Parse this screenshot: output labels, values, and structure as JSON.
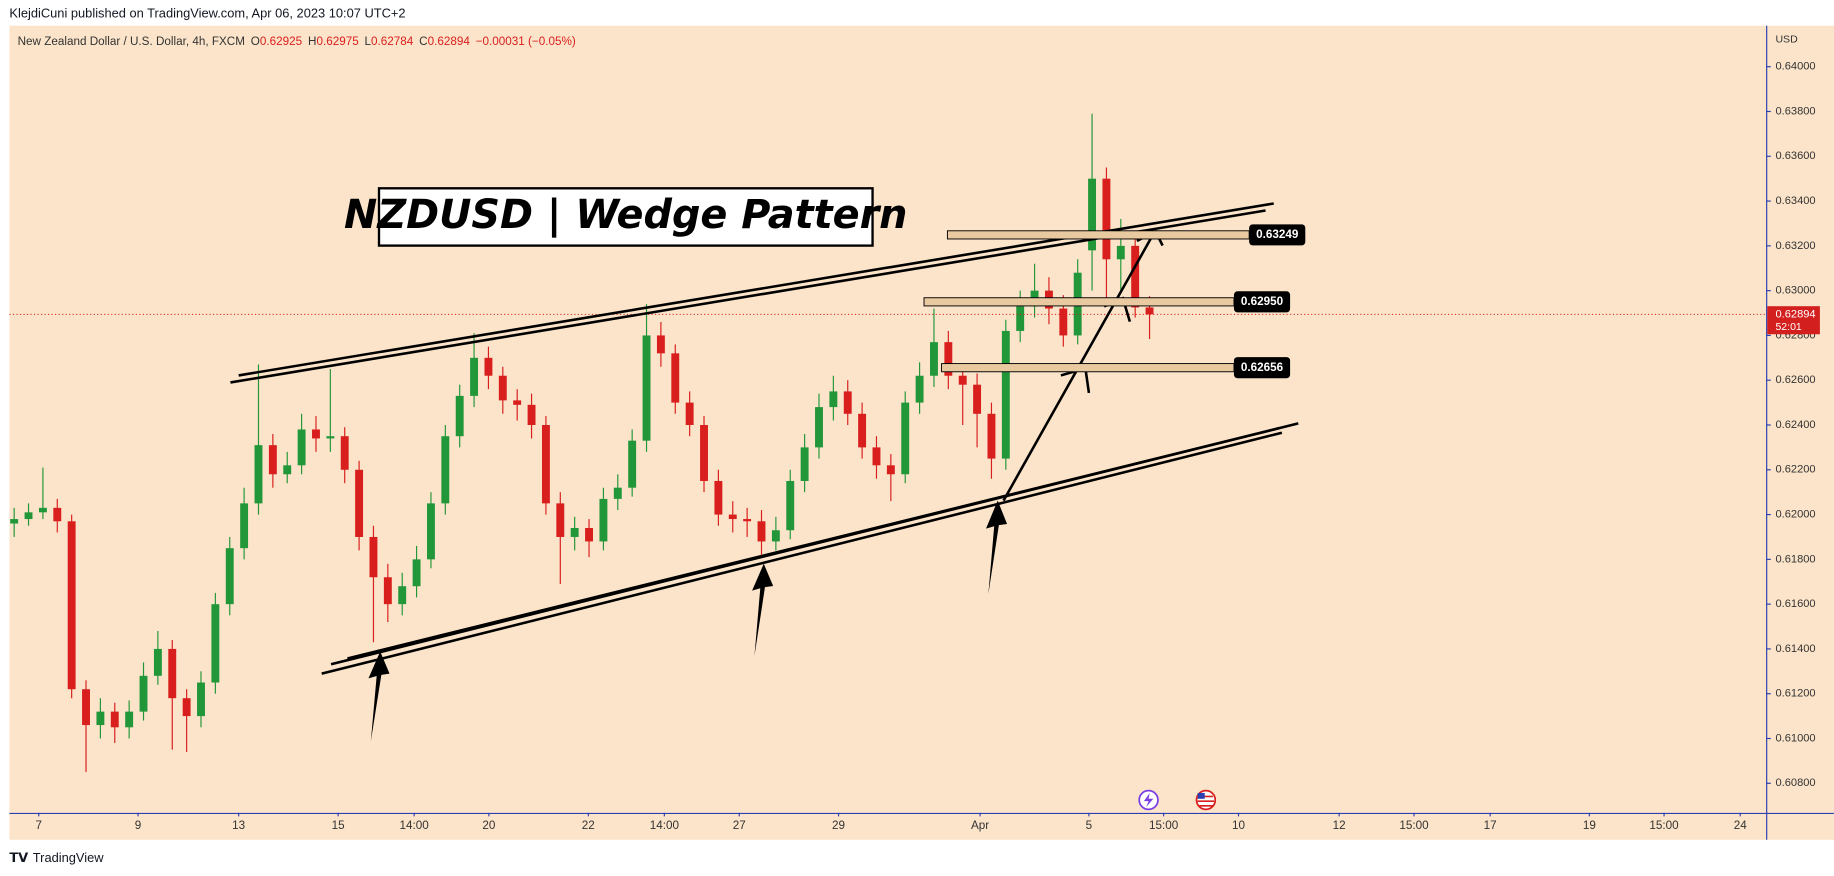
{
  "header": "KlejdiCuni published on TradingView.com, Apr 06, 2023 10:07 UTC+2",
  "footer": "TradingView",
  "chart_data": {
    "type": "candlestick",
    "title": "NZDUSD | Wedge Pattern",
    "symbol": "New Zealand Dollar / U.S. Dollar, 4h, FXCM",
    "ohlc_labels": [
      "O",
      "H",
      "L",
      "C"
    ],
    "change": "−0.00031 (−0.05%)",
    "currency": "USD",
    "countdown": "52:01",
    "up_color": "#22973a",
    "down_color": "#d91e1e",
    "categories": [
      null,
      null,
      null,
      null,
      null,
      null,
      null,
      null,
      null,
      null,
      null,
      null,
      null,
      null,
      null,
      null,
      null,
      null,
      null,
      null,
      null,
      null,
      null,
      null,
      null,
      null,
      null,
      null,
      null,
      null,
      null,
      null,
      null,
      null,
      null,
      null,
      null,
      null,
      null,
      null,
      null,
      null,
      null,
      null,
      null,
      null,
      null,
      null,
      null,
      null,
      null,
      null,
      null,
      null,
      null,
      null,
      null,
      null,
      null,
      null,
      null,
      null,
      null,
      null,
      null,
      null,
      null,
      null,
      null,
      null,
      null,
      null,
      null,
      null,
      null,
      null,
      null,
      null,
      null,
      null
    ],
    "open": [
      0.6196,
      0.6198,
      0.6201,
      0.6203,
      0.6197,
      0.6122,
      0.6106,
      0.6112,
      0.6105,
      0.6112,
      0.6128,
      0.614,
      0.6118,
      0.611,
      0.6125,
      0.616,
      0.6185,
      0.6205,
      0.6231,
      0.6218,
      0.6222,
      0.6238,
      0.6234,
      0.6235,
      0.622,
      0.619,
      0.6172,
      0.616,
      0.6168,
      0.618,
      0.6205,
      0.6235,
      0.6253,
      0.627,
      0.6262,
      0.6251,
      0.6249,
      0.624,
      0.6205,
      0.619,
      0.6194,
      0.6188,
      0.6207,
      0.6212,
      0.6233,
      0.628,
      0.6272,
      0.625,
      0.624,
      0.6215,
      0.62,
      0.6198,
      0.6197,
      0.6188,
      0.6193,
      0.6215,
      0.623,
      0.6248,
      0.6255,
      0.6245,
      0.623,
      0.6222,
      0.6218,
      0.625,
      0.6262,
      0.6277,
      0.6262,
      0.6258,
      0.6245,
      0.6225,
      0.6282,
      0.6293,
      0.63,
      0.6292,
      0.628,
      0.6318,
      0.635,
      0.6314,
      0.632,
      0.62925
    ],
    "high": [
      0.6203,
      0.6205,
      0.6221,
      0.6207,
      0.62,
      0.6126,
      0.6118,
      0.6116,
      0.6117,
      0.6134,
      0.6148,
      0.6144,
      0.6122,
      0.613,
      0.6165,
      0.619,
      0.6212,
      0.6267,
      0.6236,
      0.6228,
      0.6245,
      0.6244,
      0.6265,
      0.6239,
      0.6224,
      0.6195,
      0.6178,
      0.6174,
      0.6186,
      0.621,
      0.624,
      0.6258,
      0.6281,
      0.6275,
      0.6266,
      0.6256,
      0.6254,
      0.6244,
      0.621,
      0.6199,
      0.6198,
      0.6212,
      0.6218,
      0.6238,
      0.6294,
      0.6286,
      0.6276,
      0.6255,
      0.6244,
      0.622,
      0.6206,
      0.6203,
      0.6202,
      0.6199,
      0.622,
      0.6236,
      0.6254,
      0.6262,
      0.626,
      0.625,
      0.6235,
      0.6227,
      0.6255,
      0.6268,
      0.6292,
      0.6282,
      0.6267,
      0.6263,
      0.625,
      0.6287,
      0.63,
      0.6312,
      0.6306,
      0.6298,
      0.6314,
      0.6379,
      0.6355,
      0.6332,
      0.6325,
      0.62975
    ],
    "low": [
      0.619,
      0.6195,
      0.6198,
      0.6192,
      0.6118,
      0.6085,
      0.61,
      0.6098,
      0.61,
      0.6108,
      0.6124,
      0.6095,
      0.6094,
      0.6105,
      0.612,
      0.6155,
      0.618,
      0.62,
      0.6212,
      0.6214,
      0.6218,
      0.6228,
      0.6228,
      0.6214,
      0.6184,
      0.6143,
      0.6152,
      0.6155,
      0.6163,
      0.6176,
      0.62,
      0.623,
      0.6248,
      0.6256,
      0.6245,
      0.6242,
      0.6234,
      0.62,
      0.6169,
      0.6184,
      0.6181,
      0.6184,
      0.6202,
      0.6208,
      0.6228,
      0.6266,
      0.6245,
      0.6235,
      0.621,
      0.6195,
      0.6192,
      0.619,
      0.6182,
      0.6184,
      0.6189,
      0.621,
      0.6225,
      0.6242,
      0.624,
      0.6225,
      0.6216,
      0.6206,
      0.6214,
      0.6245,
      0.6257,
      0.6256,
      0.624,
      0.623,
      0.6216,
      0.622,
      0.6277,
      0.6288,
      0.6285,
      0.6275,
      0.6276,
      0.63,
      0.6295,
      0.63,
      0.6288,
      0.62784
    ],
    "close": [
      0.6198,
      0.6201,
      0.6203,
      0.6197,
      0.6122,
      0.6106,
      0.6112,
      0.6105,
      0.6112,
      0.6128,
      0.614,
      0.6118,
      0.611,
      0.6125,
      0.616,
      0.6185,
      0.6205,
      0.6231,
      0.6218,
      0.6222,
      0.6238,
      0.6234,
      0.6235,
      0.622,
      0.619,
      0.6172,
      0.616,
      0.6168,
      0.618,
      0.6205,
      0.6235,
      0.6253,
      0.627,
      0.6262,
      0.6251,
      0.6249,
      0.624,
      0.6205,
      0.619,
      0.6194,
      0.6188,
      0.6207,
      0.6212,
      0.6233,
      0.628,
      0.6272,
      0.625,
      0.624,
      0.6215,
      0.62,
      0.6198,
      0.6197,
      0.6188,
      0.6193,
      0.6215,
      0.623,
      0.6248,
      0.6255,
      0.6245,
      0.623,
      0.6222,
      0.6218,
      0.625,
      0.6262,
      0.6277,
      0.6262,
      0.6258,
      0.6245,
      0.6225,
      0.6282,
      0.6293,
      0.63,
      0.6292,
      0.628,
      0.6308,
      0.635,
      0.6314,
      0.632,
      0.62925,
      0.62894
    ],
    "levels": [
      0.63249,
      {
        "value": 0.6295,
        "label": "0.62950"
      },
      0.62656
    ],
    "xlim": [
      -0.33,
      121.9
    ],
    "xticks": [
      {
        "value": 1.71,
        "label": "7"
      },
      {
        "value": 8.62,
        "label": "9"
      },
      {
        "value": 15.62,
        "label": "13"
      },
      {
        "value": 22.54,
        "label": "15"
      },
      {
        "value": 27.83,
        "label": "14:00"
      },
      {
        "value": 33.03,
        "label": "20"
      },
      {
        "value": 39.95,
        "label": "22"
      },
      {
        "value": 45.24,
        "label": "14:00"
      },
      {
        "value": 50.45,
        "label": "27"
      },
      {
        "value": 57.36,
        "label": "29"
      },
      {
        "value": 67.21,
        "label": "Apr"
      },
      {
        "value": 74.78,
        "label": "5"
      },
      {
        "value": 79.98,
        "label": "15:00"
      },
      {
        "value": 85.19,
        "label": "10"
      },
      {
        "value": 92.19,
        "label": "12"
      },
      {
        "value": 97.4,
        "label": "15:00"
      },
      {
        "value": 102.7,
        "label": "17"
      },
      {
        "value": 109.6,
        "label": "19"
      },
      {
        "value": 114.8,
        "label": "15:00"
      },
      {
        "value": 120.1,
        "label": "24"
      }
    ],
    "ylim": [
      0.60668,
      0.64183
    ],
    "yticks": [
      {
        "value": 0.608,
        "label": "0.60800"
      },
      {
        "value": 0.61,
        "label": "0.61000"
      },
      {
        "value": 0.612,
        "label": "0.61200"
      },
      {
        "value": 0.614,
        "label": "0.61400"
      },
      {
        "value": 0.616,
        "label": "0.61600"
      },
      {
        "value": 0.618,
        "label": "0.61800"
      },
      {
        "value": 0.62,
        "label": "0.62000"
      },
      {
        "value": 0.622,
        "label": "0.62200"
      },
      {
        "value": 0.624,
        "label": "0.62400"
      },
      {
        "value": 0.626,
        "label": "0.62600"
      },
      {
        "value": 0.628,
        "label": "0.62800"
      },
      {
        "value": 0.63,
        "label": "0.63000"
      },
      {
        "value": 0.632,
        "label": "0.63200"
      },
      {
        "value": 0.634,
        "label": "0.63400"
      },
      {
        "value": 0.636,
        "label": "0.63600"
      },
      {
        "value": 0.638,
        "label": "0.63800"
      },
      {
        "value": 0.64,
        "label": "0.64000"
      }
    ],
    "grid": false
  }
}
